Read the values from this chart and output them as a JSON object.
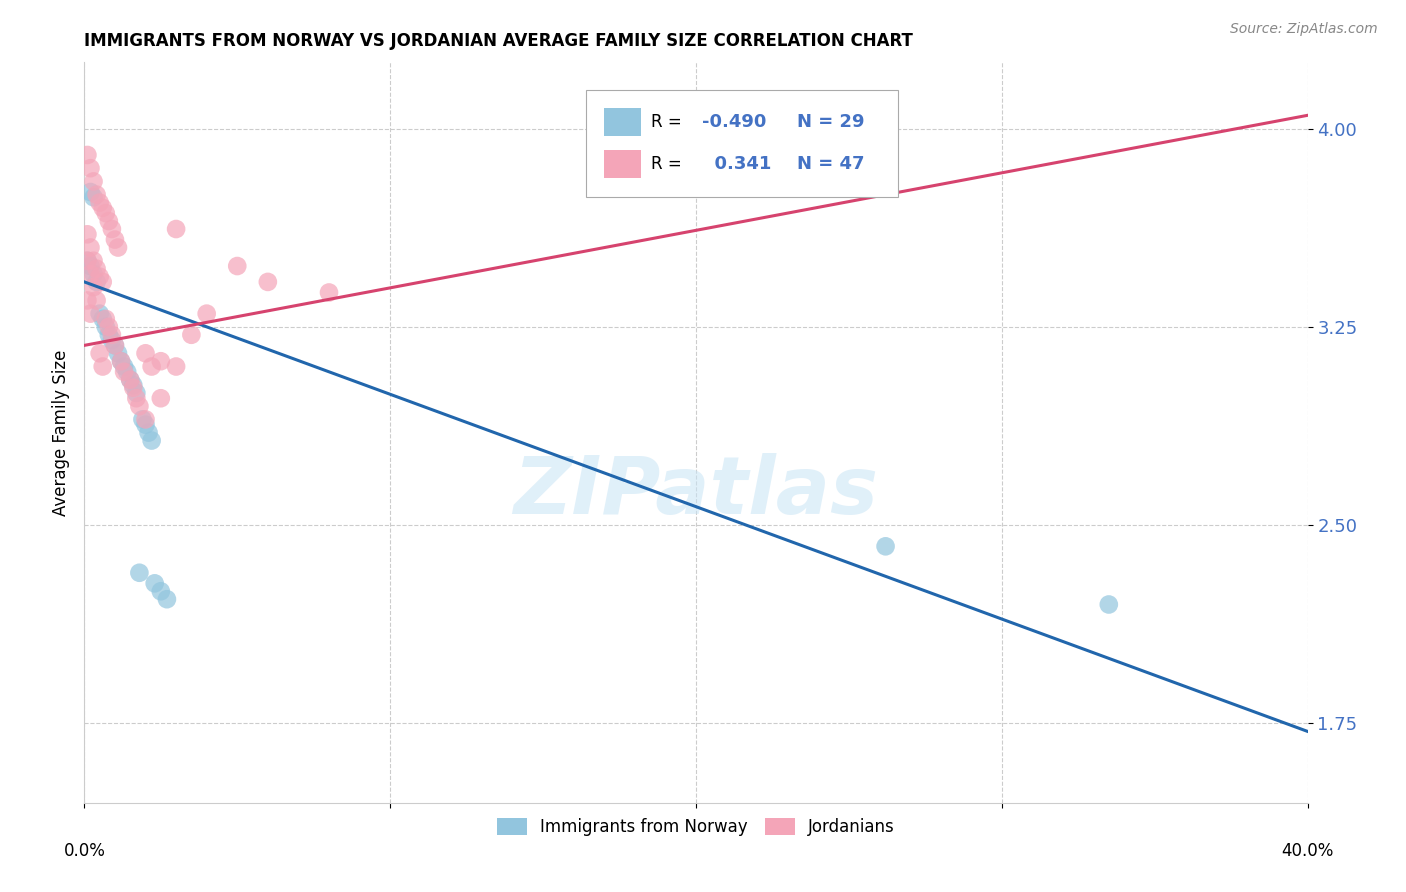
{
  "title": "IMMIGRANTS FROM NORWAY VS JORDANIAN AVERAGE FAMILY SIZE CORRELATION CHART",
  "source": "Source: ZipAtlas.com",
  "ylabel": "Average Family Size",
  "yticks": [
    1.75,
    2.5,
    3.25,
    4.0
  ],
  "xlim": [
    0.0,
    0.4
  ],
  "ylim": [
    1.45,
    4.25
  ],
  "legend_r_blue": "-0.490",
  "legend_n_blue": "29",
  "legend_r_pink": "0.341",
  "legend_n_pink": "47",
  "blue_color": "#92c5de",
  "pink_color": "#f4a5b8",
  "blue_line_color": "#2166ac",
  "pink_line_color": "#d6436e",
  "watermark": "ZIPatlas",
  "norway_x": [
    0.002,
    0.003,
    0.001,
    0.002,
    0.003,
    0.004,
    0.005,
    0.006,
    0.007,
    0.008,
    0.009,
    0.01,
    0.011,
    0.012,
    0.013,
    0.014,
    0.015,
    0.016,
    0.017,
    0.019,
    0.02,
    0.021,
    0.022,
    0.018,
    0.023,
    0.025,
    0.027,
    0.262,
    0.335
  ],
  "norway_y": [
    3.76,
    3.74,
    3.5,
    3.48,
    3.45,
    3.42,
    3.3,
    3.28,
    3.25,
    3.22,
    3.2,
    3.18,
    3.15,
    3.12,
    3.1,
    3.08,
    3.05,
    3.03,
    3.0,
    2.9,
    2.88,
    2.85,
    2.82,
    2.32,
    2.28,
    2.25,
    2.22,
    2.42,
    2.2
  ],
  "jordan_x": [
    0.001,
    0.001,
    0.001,
    0.001,
    0.002,
    0.002,
    0.002,
    0.002,
    0.003,
    0.003,
    0.003,
    0.004,
    0.004,
    0.004,
    0.005,
    0.005,
    0.005,
    0.006,
    0.006,
    0.006,
    0.007,
    0.007,
    0.008,
    0.008,
    0.009,
    0.009,
    0.01,
    0.01,
    0.011,
    0.012,
    0.013,
    0.015,
    0.016,
    0.017,
    0.018,
    0.02,
    0.02,
    0.022,
    0.025,
    0.025,
    0.03,
    0.03,
    0.035,
    0.04,
    0.05,
    0.06,
    0.08
  ],
  "jordan_y": [
    3.9,
    3.6,
    3.5,
    3.35,
    3.85,
    3.55,
    3.45,
    3.3,
    3.8,
    3.5,
    3.4,
    3.75,
    3.47,
    3.35,
    3.72,
    3.44,
    3.15,
    3.7,
    3.42,
    3.1,
    3.68,
    3.28,
    3.65,
    3.25,
    3.62,
    3.22,
    3.58,
    3.18,
    3.55,
    3.12,
    3.08,
    3.05,
    3.02,
    2.98,
    2.95,
    3.15,
    2.9,
    3.1,
    3.12,
    2.98,
    3.62,
    3.1,
    3.22,
    3.3,
    3.48,
    3.42,
    3.38
  ],
  "blue_line_x": [
    0.0,
    0.4
  ],
  "blue_line_y": [
    3.42,
    1.72
  ],
  "pink_line_x": [
    0.0,
    0.4
  ],
  "pink_line_y": [
    3.18,
    4.05
  ]
}
